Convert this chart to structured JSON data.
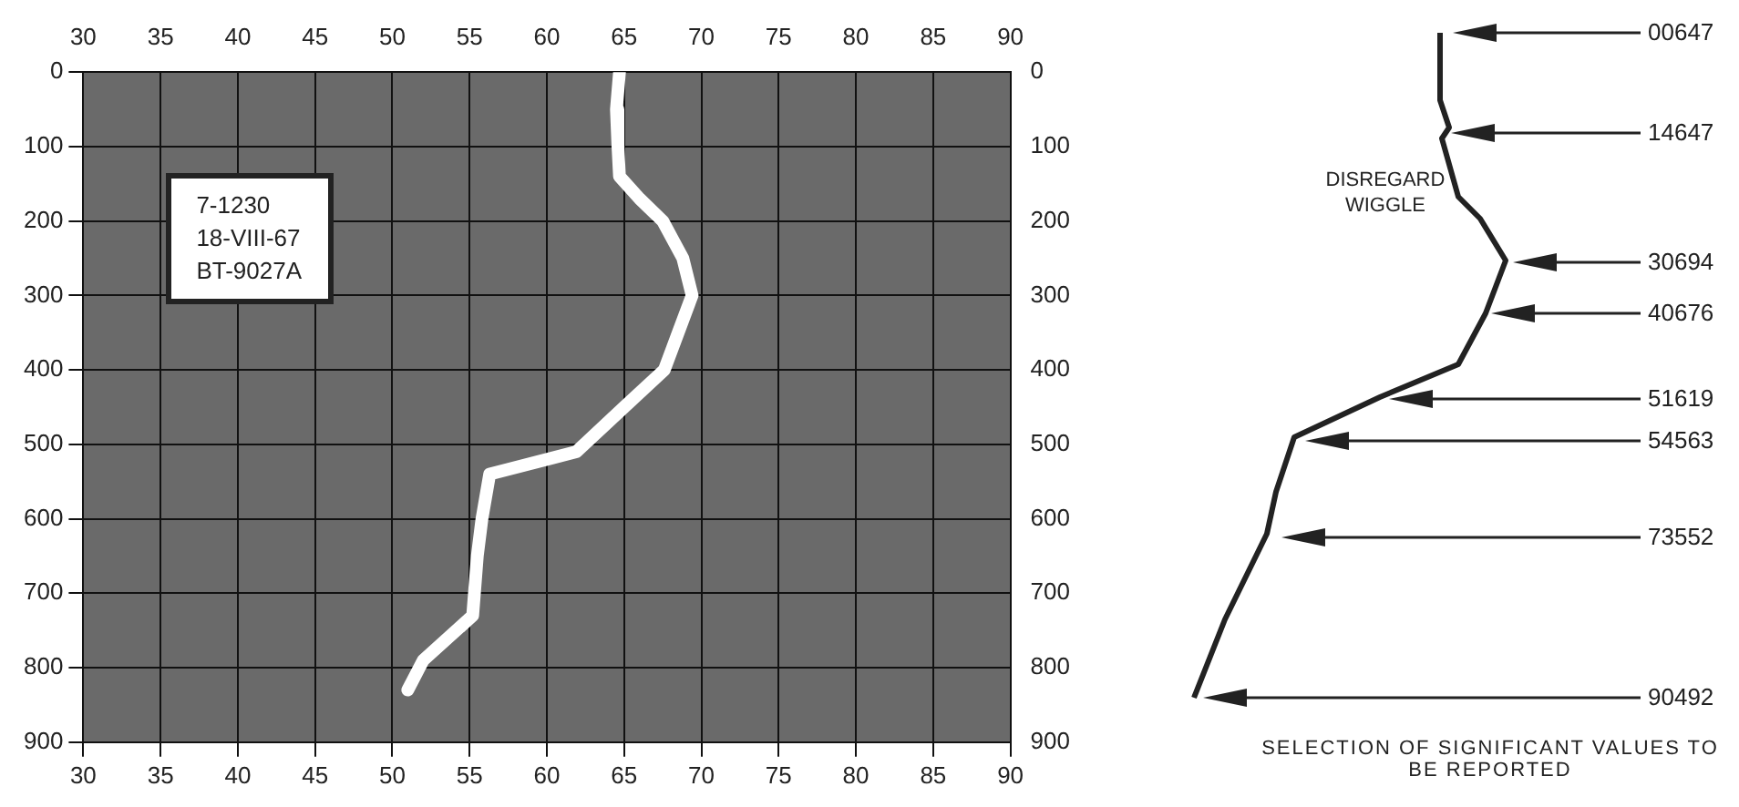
{
  "chart_data": [
    {
      "type": "line",
      "x": [
        64.7,
        64.5,
        64.6,
        64.7,
        66,
        67.5,
        68.8,
        69.4,
        68.5,
        67.6,
        65,
        61.9,
        56.3,
        55.8,
        55.5,
        55.2,
        52,
        51
      ],
      "series": [
        {
          "color": "#ffffff",
          "values": [
            0,
            50,
            100,
            140,
            170,
            200,
            250,
            300,
            350,
            400,
            450,
            510,
            540,
            600,
            650,
            730,
            790,
            830
          ]
        }
      ],
      "xlim": [
        30,
        90
      ],
      "xticks": [
        30,
        35,
        40,
        45,
        50,
        55,
        60,
        65,
        70,
        75,
        80,
        85,
        90
      ],
      "x2lim": [
        30,
        90
      ],
      "x2ticks": [
        30,
        35,
        40,
        45,
        50,
        55,
        60,
        65,
        70,
        75,
        80,
        85,
        90
      ],
      "ylim": [
        900,
        0
      ],
      "yticks": [
        0,
        100,
        200,
        300,
        400,
        500,
        600,
        700,
        800,
        900
      ],
      "y2lim": [
        900,
        0
      ],
      "y2ticks": [
        0,
        100,
        200,
        300,
        400,
        500,
        600,
        700,
        800,
        900
      ],
      "grid": true,
      "marker": "none",
      "annotations": [
        "7-1230",
        "18-VIII-67",
        "BT-9027A"
      ]
    },
    {
      "type": "other",
      "annotations": [
        "00647",
        "14647",
        "30694",
        "40676",
        "51619",
        "54563",
        "73552",
        "90492",
        "DISREGARD WIGGLE",
        "SELECTION OF SIGNIFICANT VALUES TO BE REPORTED"
      ]
    }
  ]
}
